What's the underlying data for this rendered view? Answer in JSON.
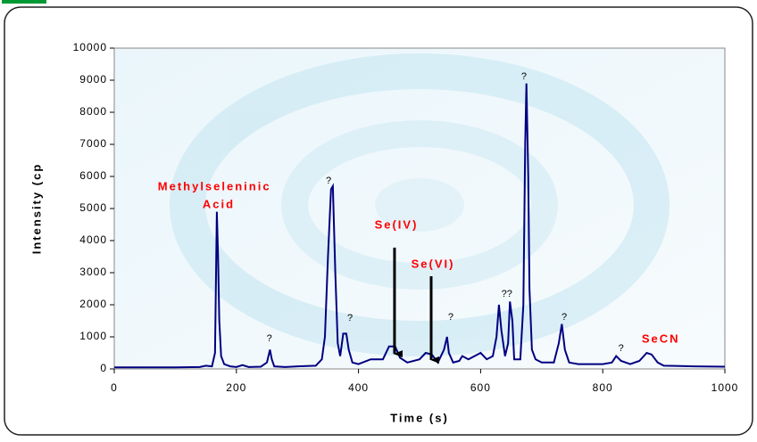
{
  "chart_data": {
    "type": "line",
    "x_label": "Time (s)",
    "y_label": "Intensity (cp",
    "xlim": [
      0,
      1000
    ],
    "xticks": [
      0,
      200,
      400,
      600,
      800,
      1000
    ],
    "ylim": [
      0,
      10000
    ],
    "yticks": [
      0,
      1000,
      2000,
      3000,
      4000,
      5000,
      6000,
      7000,
      8000,
      9000,
      10000
    ],
    "x": [
      0,
      100,
      140,
      150,
      160,
      165,
      168,
      170,
      172,
      175,
      180,
      190,
      200,
      210,
      220,
      240,
      250,
      255,
      258,
      262,
      280,
      300,
      330,
      340,
      345,
      350,
      355,
      358,
      362,
      366,
      370,
      375,
      380,
      384,
      390,
      400,
      420,
      440,
      450,
      460,
      468,
      480,
      500,
      510,
      520,
      530,
      540,
      545,
      548,
      555,
      565,
      570,
      580,
      590,
      600,
      610,
      620,
      626,
      630,
      634,
      640,
      645,
      648,
      652,
      655,
      665,
      670,
      673,
      675,
      678,
      680,
      684,
      690,
      700,
      720,
      728,
      733,
      738,
      745,
      760,
      800,
      815,
      822,
      830,
      845,
      860,
      872,
      880,
      890,
      900,
      950,
      1000
    ],
    "series": [
      {
        "color": "#000080",
        "values": [
          50,
          50,
          60,
          100,
          80,
          500,
          4900,
          3500,
          1500,
          400,
          150,
          80,
          60,
          120,
          60,
          70,
          200,
          600,
          300,
          80,
          60,
          80,
          100,
          300,
          1000,
          3500,
          5600,
          5700,
          3000,
          800,
          400,
          1100,
          1100,
          600,
          200,
          150,
          300,
          300,
          700,
          700,
          350,
          200,
          300,
          500,
          450,
          200,
          600,
          1000,
          500,
          200,
          250,
          400,
          300,
          400,
          500,
          300,
          400,
          1000,
          2000,
          1200,
          400,
          800,
          2100,
          1500,
          300,
          300,
          2000,
          7000,
          8900,
          6000,
          2500,
          600,
          300,
          200,
          200,
          800,
          1400,
          600,
          200,
          150,
          150,
          200,
          400,
          250,
          150,
          250,
          500,
          450,
          200,
          100,
          80,
          70
        ]
      }
    ],
    "annotations": [
      {
        "text": "Methylseleninic",
        "x": 164,
        "y": 5670,
        "style": "red"
      },
      {
        "text": "Acid",
        "x": 171,
        "y": 5110,
        "style": "red"
      },
      {
        "text": "?",
        "x": 254,
        "y": 944,
        "style": "q"
      },
      {
        "text": "?",
        "x": 351,
        "y": 5860,
        "style": "q"
      },
      {
        "text": "?",
        "x": 386,
        "y": 1580,
        "style": "q"
      },
      {
        "text": "Se(IV)",
        "x": 462,
        "y": 4470,
        "style": "red",
        "arrow": [
          459,
          3780,
          470
        ]
      },
      {
        "text": "Se(VI)",
        "x": 522,
        "y": 3250,
        "style": "red",
        "arrow": [
          519,
          2890,
          280
        ]
      },
      {
        "text": "?",
        "x": 551,
        "y": 1610,
        "style": "q"
      },
      {
        "text": "??",
        "x": 643,
        "y": 2330,
        "style": "q"
      },
      {
        "text": "?",
        "x": 671,
        "y": 9110,
        "style": "q"
      },
      {
        "text": "?",
        "x": 737,
        "y": 1610,
        "style": "q"
      },
      {
        "text": "?",
        "x": 830,
        "y": 640,
        "style": "q"
      },
      {
        "text": "SeCN",
        "x": 895,
        "y": 920,
        "style": "red"
      }
    ]
  }
}
